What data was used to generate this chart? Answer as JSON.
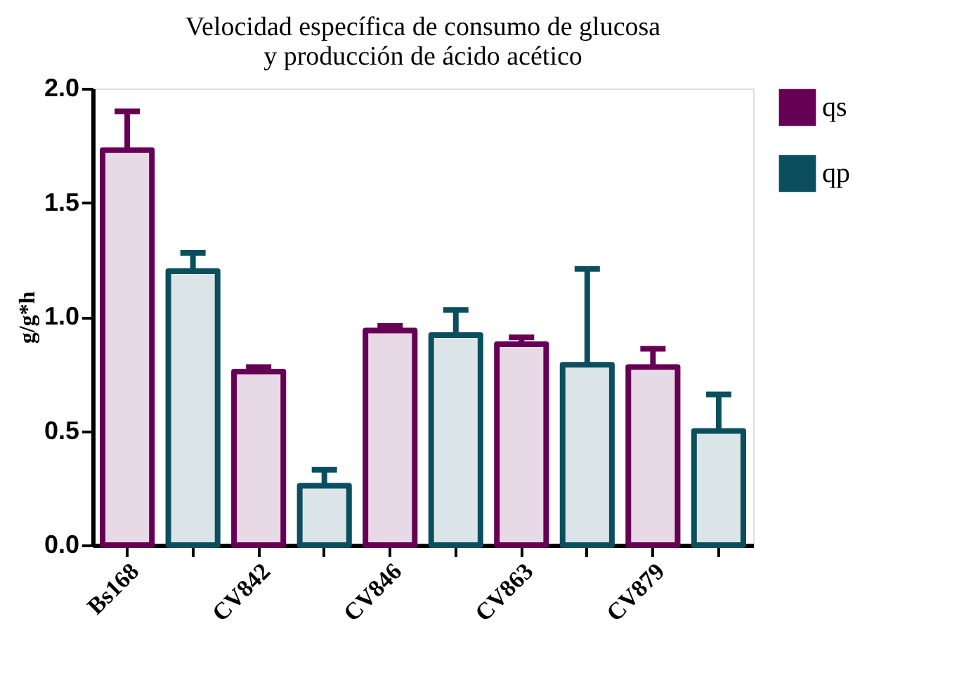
{
  "chart_data": {
    "type": "bar",
    "title": [
      "Velocidad específica de consumo de glucosa",
      "y producción de ácido acético"
    ],
    "ylabel": "g/g*h",
    "categories": [
      "Bs168",
      null,
      "CV842",
      null,
      "CV846",
      null,
      "CV863",
      null,
      "CV879",
      null
    ],
    "series": [
      {
        "name": "qs",
        "color": "#660055",
        "values": [
          1.73,
          null,
          0.76,
          null,
          0.94,
          null,
          0.88,
          null,
          0.78,
          null
        ],
        "errors": [
          [
            1.73,
            1.9
          ],
          null,
          [
            0.76,
            0.78
          ],
          null,
          [
            0.94,
            0.96
          ],
          null,
          [
            0.88,
            0.91
          ],
          null,
          [
            0.78,
            0.86
          ],
          null
        ]
      },
      {
        "name": "qp",
        "color": "#0b4f5e",
        "values": [
          null,
          1.2,
          null,
          0.26,
          null,
          0.92,
          null,
          0.79,
          null,
          0.5
        ],
        "errors": [
          null,
          [
            1.2,
            1.28
          ],
          null,
          [
            0.26,
            0.33
          ],
          null,
          [
            0.92,
            1.03
          ],
          null,
          [
            0.79,
            1.21
          ],
          null,
          [
            0.5,
            0.66
          ]
        ]
      }
    ],
    "ylim": [
      0,
      2.0
    ],
    "yticks": [
      {
        "value": 0,
        "label": "0.0"
      },
      {
        "value": 0.5,
        "label": "0.5"
      },
      {
        "value": 1.0,
        "label": "1.0"
      },
      {
        "value": 1.5,
        "label": "1.5"
      },
      {
        "value": 2.0,
        "label": "2.0"
      }
    ],
    "grid": false,
    "legend": "top right"
  }
}
